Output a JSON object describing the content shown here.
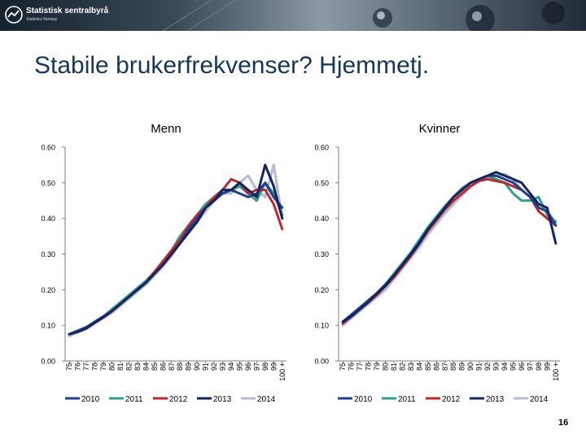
{
  "header": {
    "logo_text": "Statistisk sentralbyrå",
    "logo_subtext": "Statistics Norway"
  },
  "page": {
    "title": "Stabile brukerfrekvenser? Hjemmetj.",
    "number": "16"
  },
  "colors": {
    "2010": "#1f3f8f",
    "2011": "#2e9f8a",
    "2012": "#c0272d",
    "2013": "#14255e",
    "2014": "#b3bad3"
  },
  "chart_data": [
    {
      "type": "line",
      "title": "Menn",
      "categories": [
        "75",
        "76",
        "77",
        "78",
        "79",
        "80",
        "81",
        "82",
        "83",
        "84",
        "85",
        "86",
        "87",
        "88",
        "89",
        "90",
        "91",
        "92",
        "93",
        "94",
        "95",
        "96",
        "97",
        "98",
        "99",
        "100 +"
      ],
      "ylim": [
        0,
        0.6
      ],
      "yticks": [
        "0.00",
        "0.10",
        "0.20",
        "0.30",
        "0.40",
        "0.50",
        "0.60"
      ],
      "grid": false,
      "legend": "bottom",
      "series": [
        {
          "name": "2010",
          "values": [
            0.075,
            0.085,
            0.095,
            0.11,
            0.125,
            0.14,
            0.16,
            0.18,
            0.2,
            0.22,
            0.245,
            0.27,
            0.3,
            0.33,
            0.37,
            0.4,
            0.43,
            0.45,
            0.47,
            0.48,
            0.47,
            0.46,
            0.47,
            0.5,
            0.46,
            0.43
          ]
        },
        {
          "name": "2011",
          "values": [
            0.075,
            0.085,
            0.095,
            0.11,
            0.125,
            0.145,
            0.165,
            0.185,
            0.205,
            0.225,
            0.25,
            0.28,
            0.31,
            0.35,
            0.38,
            0.41,
            0.44,
            0.46,
            0.47,
            0.48,
            0.49,
            0.47,
            0.45,
            0.5,
            0.47,
            0.41
          ]
        },
        {
          "name": "2012",
          "values": [
            0.075,
            0.082,
            0.092,
            0.108,
            0.123,
            0.14,
            0.16,
            0.18,
            0.2,
            0.22,
            0.25,
            0.28,
            0.31,
            0.34,
            0.38,
            0.41,
            0.43,
            0.46,
            0.48,
            0.51,
            0.5,
            0.47,
            0.48,
            0.48,
            0.44,
            0.37
          ]
        },
        {
          "name": "2013",
          "values": [
            0.075,
            0.082,
            0.092,
            0.108,
            0.123,
            0.14,
            0.16,
            0.18,
            0.2,
            0.22,
            0.245,
            0.27,
            0.3,
            0.33,
            0.36,
            0.39,
            0.43,
            0.45,
            0.48,
            0.48,
            0.5,
            0.48,
            0.46,
            0.55,
            0.49,
            0.4
          ]
        },
        {
          "name": "2014",
          "values": [
            0.07,
            0.08,
            0.09,
            0.105,
            0.12,
            0.135,
            0.155,
            0.175,
            0.195,
            0.215,
            0.24,
            0.265,
            0.295,
            0.33,
            0.36,
            0.39,
            0.42,
            0.45,
            0.47,
            0.47,
            0.5,
            0.52,
            0.48,
            0.46,
            0.55,
            0.4
          ]
        }
      ]
    },
    {
      "type": "line",
      "title": "Kvinner",
      "categories": [
        "75",
        "76",
        "77",
        "78",
        "79",
        "80",
        "81",
        "82",
        "83",
        "84",
        "85",
        "86",
        "87",
        "88",
        "89",
        "90",
        "91",
        "92",
        "93",
        "94",
        "95",
        "96",
        "97",
        "98",
        "99",
        "100 +"
      ],
      "ylim": [
        0,
        0.6
      ],
      "yticks": [
        "0.00",
        "0.10",
        "0.20",
        "0.30",
        "0.40",
        "0.50",
        "0.60"
      ],
      "grid": false,
      "legend": "bottom",
      "series": [
        {
          "name": "2010",
          "values": [
            0.11,
            0.13,
            0.15,
            0.17,
            0.19,
            0.215,
            0.24,
            0.27,
            0.3,
            0.335,
            0.37,
            0.4,
            0.43,
            0.46,
            0.48,
            0.5,
            0.51,
            0.52,
            0.52,
            0.51,
            0.5,
            0.48,
            0.46,
            0.43,
            0.42,
            0.38
          ]
        },
        {
          "name": "2011",
          "values": [
            0.11,
            0.13,
            0.15,
            0.17,
            0.19,
            0.215,
            0.245,
            0.275,
            0.305,
            0.34,
            0.375,
            0.405,
            0.435,
            0.46,
            0.485,
            0.5,
            0.51,
            0.52,
            0.51,
            0.5,
            0.47,
            0.45,
            0.45,
            0.46,
            0.41,
            0.39
          ]
        },
        {
          "name": "2012",
          "values": [
            0.105,
            0.125,
            0.145,
            0.165,
            0.185,
            0.21,
            0.235,
            0.265,
            0.295,
            0.33,
            0.365,
            0.395,
            0.425,
            0.45,
            0.47,
            0.49,
            0.505,
            0.51,
            0.505,
            0.5,
            0.49,
            0.48,
            0.46,
            0.42,
            0.4,
            0.38
          ]
        },
        {
          "name": "2013",
          "values": [
            0.11,
            0.125,
            0.145,
            0.165,
            0.19,
            0.21,
            0.24,
            0.27,
            0.3,
            0.33,
            0.37,
            0.4,
            0.43,
            0.46,
            0.48,
            0.5,
            0.51,
            0.52,
            0.53,
            0.52,
            0.51,
            0.5,
            0.47,
            0.44,
            0.43,
            0.33
          ]
        },
        {
          "name": "2014",
          "values": [
            0.1,
            0.12,
            0.14,
            0.16,
            0.18,
            0.2,
            0.23,
            0.26,
            0.29,
            0.32,
            0.355,
            0.385,
            0.415,
            0.44,
            0.465,
            0.49,
            0.505,
            0.515,
            0.52,
            0.525,
            0.51,
            0.48,
            0.46,
            0.43,
            0.42,
            0.39
          ]
        }
      ]
    }
  ]
}
